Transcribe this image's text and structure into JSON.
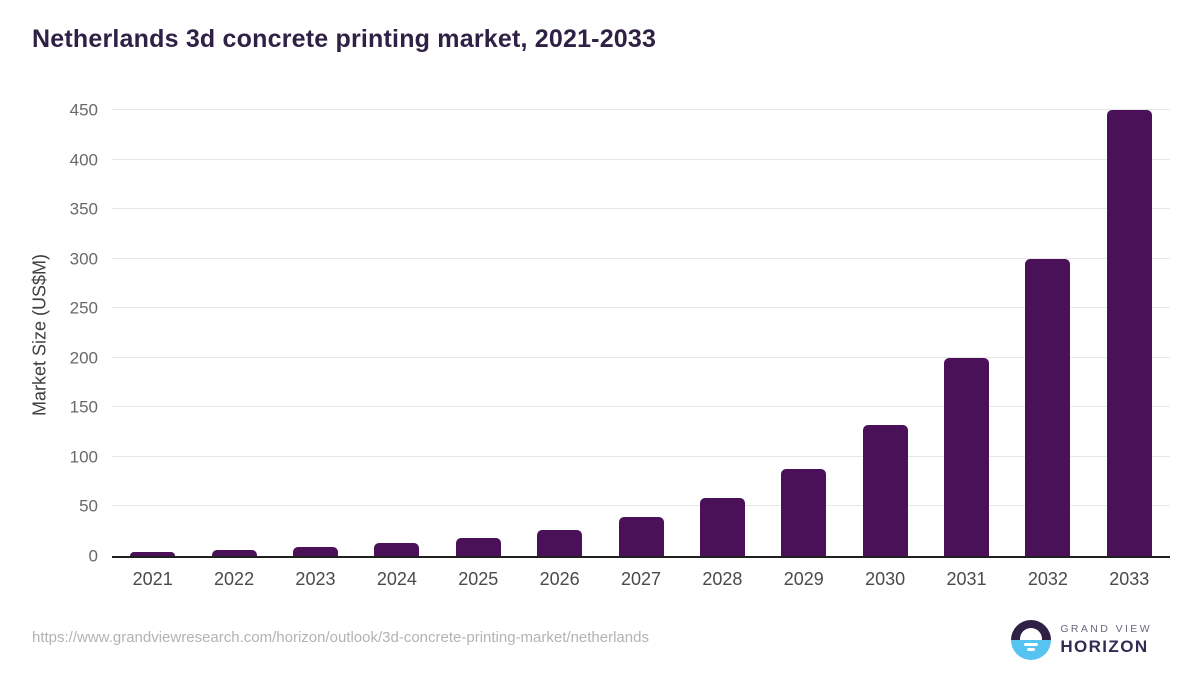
{
  "title": "Netherlands 3d concrete printing market, 2021-2033",
  "chart_data": {
    "type": "bar",
    "title": "Netherlands 3d concrete printing market, 2021-2033",
    "categories": [
      "2021",
      "2022",
      "2023",
      "2024",
      "2025",
      "2026",
      "2027",
      "2028",
      "2029",
      "2030",
      "2031",
      "2032",
      "2033"
    ],
    "values": [
      4,
      6,
      9,
      13,
      18,
      26,
      39,
      59,
      88,
      132,
      200,
      300,
      450
    ],
    "xlabel": "",
    "ylabel": "Market Size (US$M)",
    "ylim": [
      0,
      450
    ],
    "yticks": [
      0,
      50,
      100,
      150,
      200,
      250,
      300,
      350,
      400,
      450
    ],
    "grid": "horizontal",
    "legend": "none",
    "bar_color": "#4a1159"
  },
  "footer": {
    "source_url": "https://www.grandviewresearch.com/horizon/outlook/3d-concrete-printing-market/netherlands"
  },
  "logo": {
    "line1": "GRAND VIEW",
    "line2": "HORIZON"
  },
  "colors": {
    "title_text": "#2e2145",
    "bar": "#4a1159",
    "gridline": "#e7e7e7",
    "axis_line": "#1f1f1f",
    "y_tick_text": "#696969",
    "x_tick_text": "#4a4a4a",
    "url_text": "#b3b3b3",
    "logo_blue": "#56c3f0",
    "logo_dark_purple": "#2e2145"
  }
}
